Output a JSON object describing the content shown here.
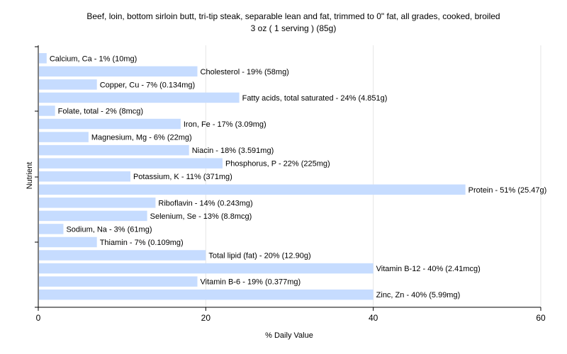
{
  "chart_data": {
    "type": "bar",
    "orientation": "horizontal",
    "title": "Beef, loin, bottom sirloin butt, tri-tip steak, separable lean and fat, trimmed to 0\" fat, all grades, cooked, broiled",
    "subtitle": "3 oz ( 1 serving ) (85g)",
    "xlabel": "% Daily Value",
    "ylabel": "Nutrient",
    "xlim": [
      0,
      60
    ],
    "xticks": [
      0,
      20,
      40,
      60
    ],
    "grid": true,
    "bar_color": "#c6dcff",
    "categories": [
      "Calcium, Ca",
      "Cholesterol",
      "Copper, Cu",
      "Fatty acids, total saturated",
      "Folate, total",
      "Iron, Fe",
      "Magnesium, Mg",
      "Niacin",
      "Phosphorus, P",
      "Potassium, K",
      "Protein",
      "Riboflavin",
      "Selenium, Se",
      "Sodium, Na",
      "Thiamin",
      "Total lipid (fat)",
      "Vitamin B-12",
      "Vitamin B-6",
      "Zinc, Zn"
    ],
    "values": [
      1,
      19,
      7,
      24,
      2,
      17,
      6,
      18,
      22,
      11,
      51,
      14,
      13,
      3,
      7,
      20,
      40,
      19,
      40
    ],
    "labels": [
      "Calcium, Ca - 1% (10mg)",
      "Cholesterol - 19% (58mg)",
      "Copper, Cu - 7% (0.134mg)",
      "Fatty acids, total saturated - 24% (4.851g)",
      "Folate, total - 2% (8mcg)",
      "Iron, Fe - 17% (3.09mg)",
      "Magnesium, Mg - 6% (22mg)",
      "Niacin - 18% (3.591mg)",
      "Phosphorus, P - 22% (225mg)",
      "Potassium, K - 11% (371mg)",
      "Protein - 51% (25.47g)",
      "Riboflavin - 14% (0.243mg)",
      "Selenium, Se - 13% (8.8mcg)",
      "Sodium, Na - 3% (61mg)",
      "Thiamin - 7% (0.109mg)",
      "Total lipid (fat) - 20% (12.90g)",
      "Vitamin B-12 - 40% (2.41mcg)",
      "Vitamin B-6 - 19% (0.377mg)",
      "Zinc, Zn - 40% (5.99mg)"
    ]
  }
}
